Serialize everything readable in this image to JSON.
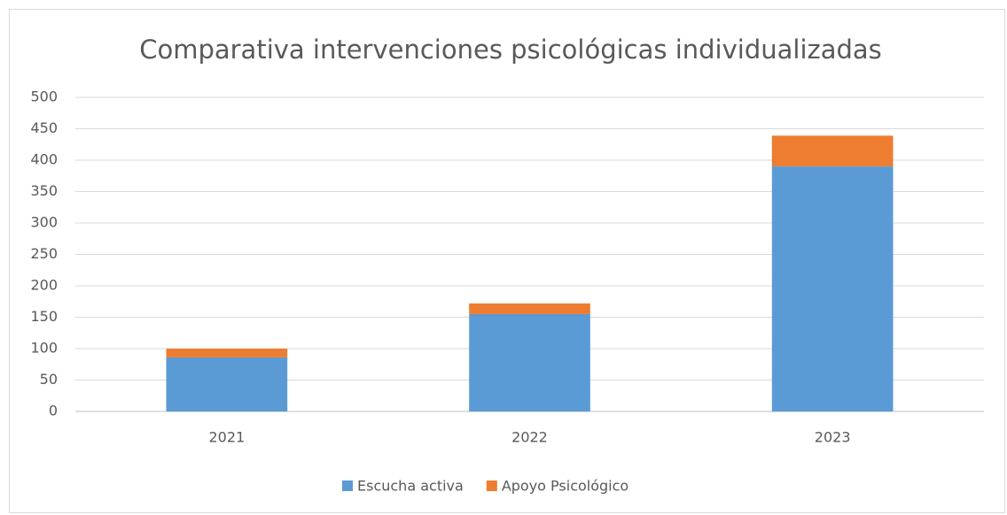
{
  "chart_data": {
    "type": "stacked_bar",
    "title": "Comparativa intervenciones psicológicas individualizadas",
    "categories": [
      "2021",
      "2022",
      "2023"
    ],
    "series": [
      {
        "name": "Escucha activa",
        "color": "#5b9bd5",
        "values": [
          86,
          155,
          390
        ]
      },
      {
        "name": "Apoyo Psicológico",
        "color": "#ed7d31",
        "values": [
          14,
          17,
          49
        ]
      }
    ],
    "ylim": [
      0,
      500
    ],
    "yticks": [
      0,
      50,
      100,
      150,
      200,
      250,
      300,
      350,
      400,
      450,
      500
    ],
    "grid": true,
    "legend": "bottom"
  }
}
